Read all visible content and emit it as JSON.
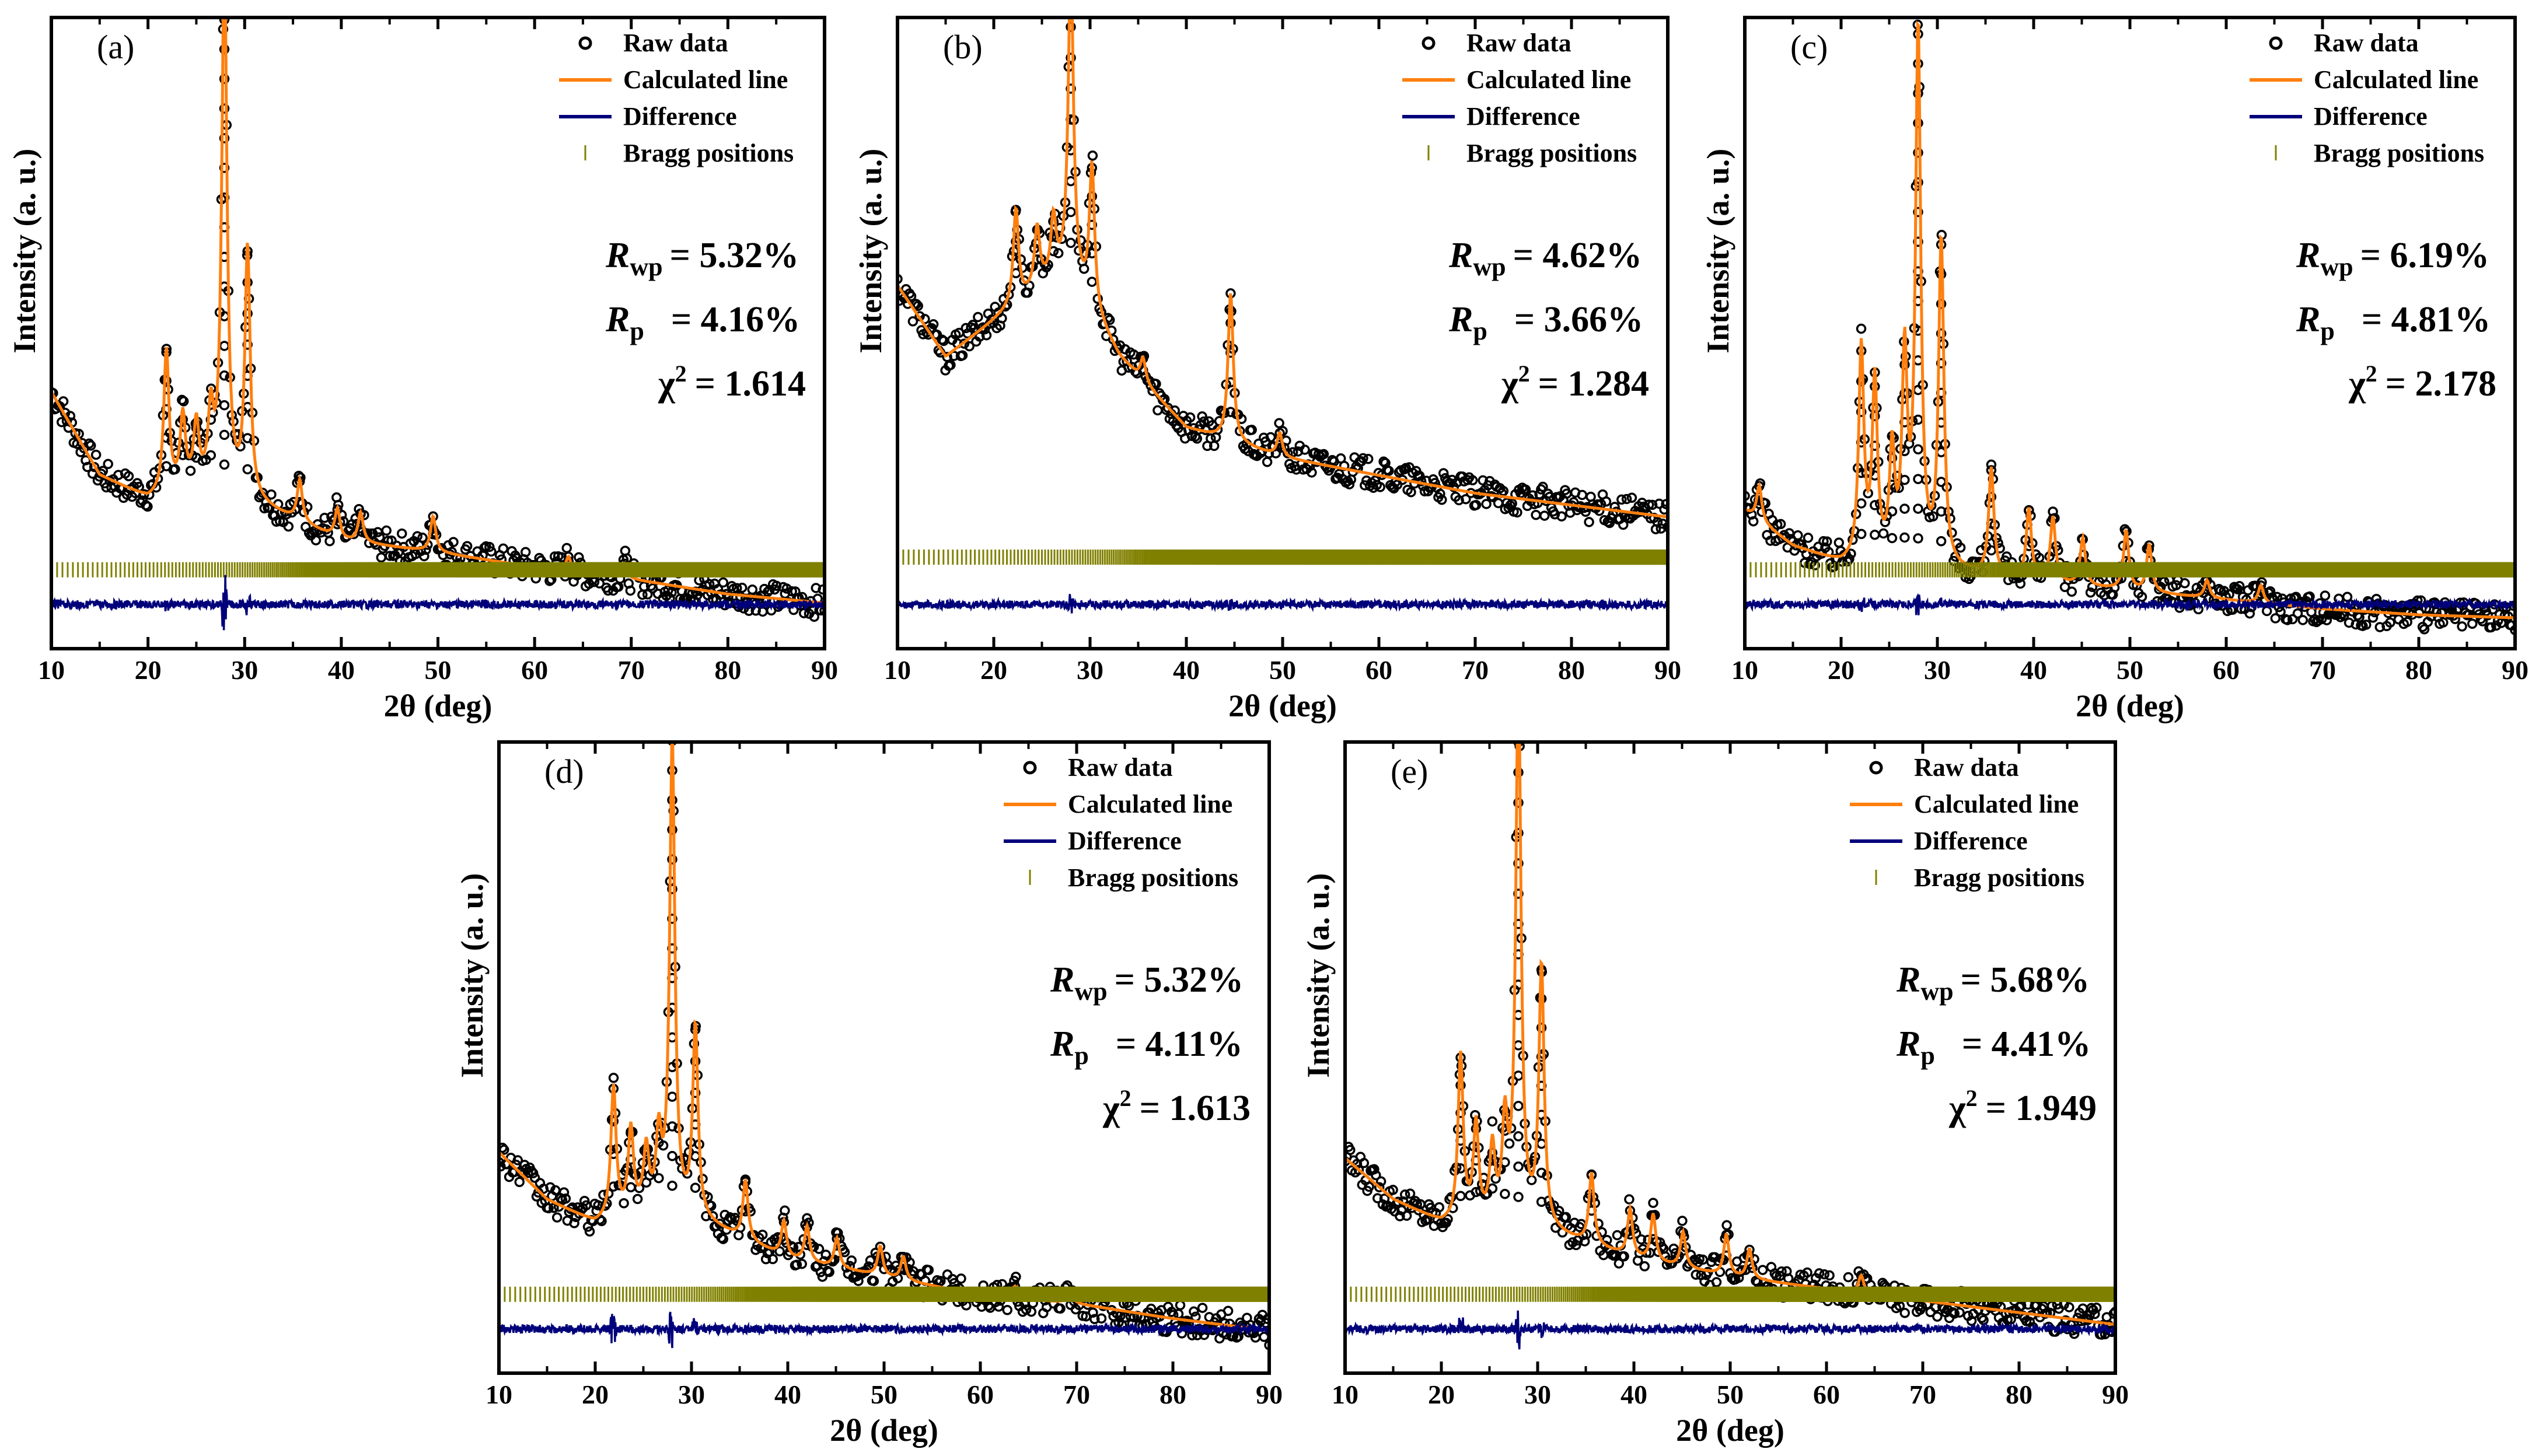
{
  "colors": {
    "raw": "#000000",
    "calculated": "#ff7f0e",
    "difference": "#00007a",
    "bragg": "#808000"
  },
  "legend": {
    "raw": "Raw data",
    "calculated": "Calculated line",
    "difference": "Difference",
    "bragg": "Bragg positions"
  },
  "labels": {
    "xlabel": "2θ (deg)",
    "ylabel": "Intensity (a. u.)",
    "rwp_symbol": "R",
    "rwp_sub": "wp",
    "rp_symbol": "R",
    "rp_sub": "p",
    "chi_symbol": "χ",
    "chi_sup": "2"
  },
  "chart_data": [
    {
      "panel": "(a)",
      "type": "scatter",
      "xlim": [
        10,
        90
      ],
      "x_ticks": [
        "10",
        "20",
        "30",
        "40",
        "50",
        "60",
        "70",
        "80",
        "90"
      ],
      "xlabel": "2θ (deg)",
      "ylabel": "Intensity (a. u.)",
      "legend_position": "top-right",
      "stats": {
        "rwp": "= 5.32%",
        "rp": "= 4.16%",
        "chi2": "= 1.614"
      },
      "background": [
        [
          10,
          0.4
        ],
        [
          15,
          0.26
        ],
        [
          20,
          0.22
        ],
        [
          25,
          0.24
        ],
        [
          30,
          0.22
        ],
        [
          40,
          0.15
        ],
        [
          50,
          0.13
        ],
        [
          60,
          0.105
        ],
        [
          70,
          0.085
        ],
        [
          80,
          0.06
        ],
        [
          90,
          0.045
        ]
      ],
      "peaks": [
        [
          21.9,
          0.24
        ],
        [
          23.6,
          0.12
        ],
        [
          25.0,
          0.1
        ],
        [
          26.5,
          0.12
        ],
        [
          27.9,
          0.9
        ],
        [
          30.3,
          0.42
        ],
        [
          35.7,
          0.07
        ],
        [
          39.6,
          0.05
        ],
        [
          42.0,
          0.05
        ],
        [
          49.5,
          0.06
        ],
        [
          63.5,
          0.025
        ],
        [
          69.3,
          0.025
        ]
      ],
      "difference_spikes": [
        [
          21.9,
          0.2
        ],
        [
          27.9,
          1.0
        ],
        [
          30.3,
          0.3
        ]
      ]
    },
    {
      "panel": "(b)",
      "type": "scatter",
      "xlim": [
        10,
        90
      ],
      "x_ticks": [
        "10",
        "20",
        "30",
        "40",
        "50",
        "60",
        "70",
        "80",
        "90"
      ],
      "xlabel": "2θ (deg)",
      "ylabel": "Intensity (a. u.)",
      "legend_position": "top-right",
      "stats": {
        "rwp": "= 4.62%",
        "rp": "= 3.66%",
        "chi2": "= 1.284"
      },
      "background": [
        [
          10,
          0.58
        ],
        [
          15,
          0.46
        ],
        [
          20,
          0.52
        ],
        [
          25,
          0.58
        ],
        [
          28,
          0.6
        ],
        [
          33,
          0.46
        ],
        [
          40,
          0.34
        ],
        [
          50,
          0.29
        ],
        [
          60,
          0.26
        ],
        [
          70,
          0.23
        ],
        [
          80,
          0.21
        ],
        [
          90,
          0.19
        ]
      ],
      "peaks": [
        [
          22.3,
          0.16
        ],
        [
          24.5,
          0.1
        ],
        [
          26.2,
          0.1
        ],
        [
          28.0,
          0.52
        ],
        [
          30.2,
          0.24
        ],
        [
          35.5,
          0.04
        ],
        [
          44.6,
          0.25
        ],
        [
          49.7,
          0.04
        ]
      ],
      "difference_spikes": [
        [
          28.0,
          0.35
        ],
        [
          44.6,
          0.2
        ]
      ]
    },
    {
      "panel": "(c)",
      "type": "scatter",
      "xlim": [
        10,
        90
      ],
      "x_ticks": [
        "10",
        "20",
        "30",
        "40",
        "50",
        "60",
        "70",
        "80",
        "90"
      ],
      "xlabel": "2θ (deg)",
      "ylabel": "Intensity (a. u.)",
      "legend_position": "top-right",
      "stats": {
        "rwp": "= 6.19%",
        "rp": "= 4.81%",
        "chi2": "= 2.178"
      },
      "background": [
        [
          10,
          0.2
        ],
        [
          15,
          0.14
        ],
        [
          20,
          0.11
        ],
        [
          25,
          0.11
        ],
        [
          30,
          0.1
        ],
        [
          40,
          0.08
        ],
        [
          50,
          0.065
        ],
        [
          60,
          0.05
        ],
        [
          70,
          0.035
        ],
        [
          80,
          0.025
        ],
        [
          90,
          0.02
        ]
      ],
      "peaks": [
        [
          11.5,
          0.06
        ],
        [
          22.1,
          0.36
        ],
        [
          23.5,
          0.3
        ],
        [
          25.3,
          0.18
        ],
        [
          26.6,
          0.34
        ],
        [
          28.0,
          0.9
        ],
        [
          30.4,
          0.55
        ],
        [
          35.6,
          0.18
        ],
        [
          39.5,
          0.12
        ],
        [
          42.0,
          0.11
        ],
        [
          45.1,
          0.08
        ],
        [
          49.6,
          0.1
        ],
        [
          52.0,
          0.08
        ],
        [
          58.0,
          0.03
        ],
        [
          63.6,
          0.03
        ]
      ],
      "difference_spikes": [
        [
          28.0,
          0.5
        ],
        [
          22.1,
          0.2
        ],
        [
          30.4,
          0.2
        ]
      ]
    },
    {
      "panel": "(d)",
      "type": "scatter",
      "xlim": [
        10,
        90
      ],
      "x_ticks": [
        "10",
        "20",
        "30",
        "40",
        "50",
        "60",
        "70",
        "80",
        "90"
      ],
      "xlabel": "2θ (deg)",
      "ylabel": "Intensity (a. u.)",
      "legend_position": "top-right",
      "stats": {
        "rwp": "= 5.32%",
        "rp": "= 4.11%",
        "chi2": "= 1.613"
      },
      "background": [
        [
          10,
          0.34
        ],
        [
          15,
          0.26
        ],
        [
          20,
          0.22
        ],
        [
          25,
          0.24
        ],
        [
          30,
          0.23
        ],
        [
          40,
          0.16
        ],
        [
          50,
          0.13
        ],
        [
          60,
          0.1
        ],
        [
          70,
          0.085
        ],
        [
          80,
          0.06
        ],
        [
          90,
          0.04
        ]
      ],
      "peaks": [
        [
          21.9,
          0.22
        ],
        [
          23.7,
          0.14
        ],
        [
          25.3,
          0.1
        ],
        [
          26.6,
          0.12
        ],
        [
          28.0,
          0.8
        ],
        [
          30.4,
          0.32
        ],
        [
          35.6,
          0.1
        ],
        [
          39.6,
          0.06
        ],
        [
          42.0,
          0.06
        ],
        [
          45.1,
          0.05
        ],
        [
          49.6,
          0.05
        ],
        [
          52.0,
          0.04
        ],
        [
          63.6,
          0.02
        ],
        [
          69.3,
          0.02
        ]
      ],
      "difference_spikes": [
        [
          21.9,
          0.5
        ],
        [
          27.8,
          0.8
        ],
        [
          30.4,
          0.3
        ]
      ]
    },
    {
      "panel": "(e)",
      "type": "scatter",
      "xlim": [
        10,
        90
      ],
      "x_ticks": [
        "10",
        "20",
        "30",
        "40",
        "50",
        "60",
        "70",
        "80",
        "90"
      ],
      "xlabel": "2θ (deg)",
      "ylabel": "Intensity (a. u.)",
      "legend_position": "top-right",
      "stats": {
        "rwp": "= 5.68%",
        "rp": "= 4.41%",
        "chi2": "= 1.949"
      },
      "background": [
        [
          10,
          0.33
        ],
        [
          15,
          0.26
        ],
        [
          20,
          0.22
        ],
        [
          25,
          0.22
        ],
        [
          30,
          0.21
        ],
        [
          40,
          0.16
        ],
        [
          50,
          0.13
        ],
        [
          60,
          0.11
        ],
        [
          70,
          0.09
        ],
        [
          80,
          0.07
        ],
        [
          90,
          0.05
        ]
      ],
      "peaks": [
        [
          22.0,
          0.28
        ],
        [
          23.6,
          0.16
        ],
        [
          25.3,
          0.12
        ],
        [
          26.6,
          0.16
        ],
        [
          28.0,
          0.92
        ],
        [
          30.4,
          0.44
        ],
        [
          35.6,
          0.12
        ],
        [
          39.6,
          0.08
        ],
        [
          42.0,
          0.08
        ],
        [
          45.1,
          0.06
        ],
        [
          49.6,
          0.07
        ],
        [
          52.0,
          0.05
        ],
        [
          63.6,
          0.03
        ]
      ],
      "difference_spikes": [
        [
          22.0,
          0.4
        ],
        [
          28.0,
          0.9
        ],
        [
          30.4,
          0.3
        ]
      ]
    }
  ]
}
